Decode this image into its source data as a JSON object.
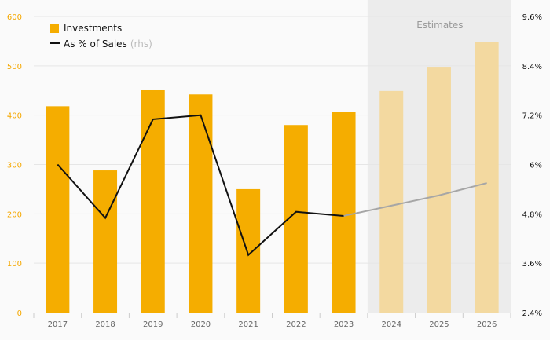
{
  "chart_data": {
    "type": "bar",
    "categories": [
      "2017",
      "2018",
      "2019",
      "2020",
      "2021",
      "2022",
      "2023",
      "2024",
      "2025",
      "2026"
    ],
    "series": [
      {
        "name": "Investments",
        "type": "bar",
        "axis": "left",
        "values": [
          418,
          288,
          452,
          442,
          250,
          380,
          407,
          449,
          498,
          548
        ],
        "estimate_from_index": 7
      },
      {
        "name": "As % of Sales",
        "type": "line",
        "axis": "right",
        "values": [
          6.0,
          4.7,
          7.1,
          7.2,
          3.8,
          4.85,
          4.75,
          5.0,
          5.25,
          5.55
        ],
        "estimate_from_index": 6
      }
    ],
    "ylim": [
      0,
      600
    ],
    "y2lim": [
      2.4,
      9.6
    ],
    "yticks": [
      "0",
      "100",
      "200",
      "300",
      "400",
      "500",
      "600"
    ],
    "y2ticks": [
      "2.4%",
      "3.6%",
      "4.8%",
      "6%",
      "7.2%",
      "8.4%",
      "9.6%"
    ],
    "legend": {
      "investments_label": "Investments",
      "line_label": "As % of Sales",
      "line_suffix": "(rhs)",
      "placement": "top-left"
    },
    "estimates_label": "Estimates",
    "grid": true,
    "colors": {
      "bar": "#f5ad00",
      "bar_estimate": "#f3d9a0",
      "line": "#111111",
      "line_estimate": "#a6a6a6",
      "estimate_band": "#ececec",
      "left_axis": "#f5a800",
      "grid": "#e6e6e6"
    }
  }
}
